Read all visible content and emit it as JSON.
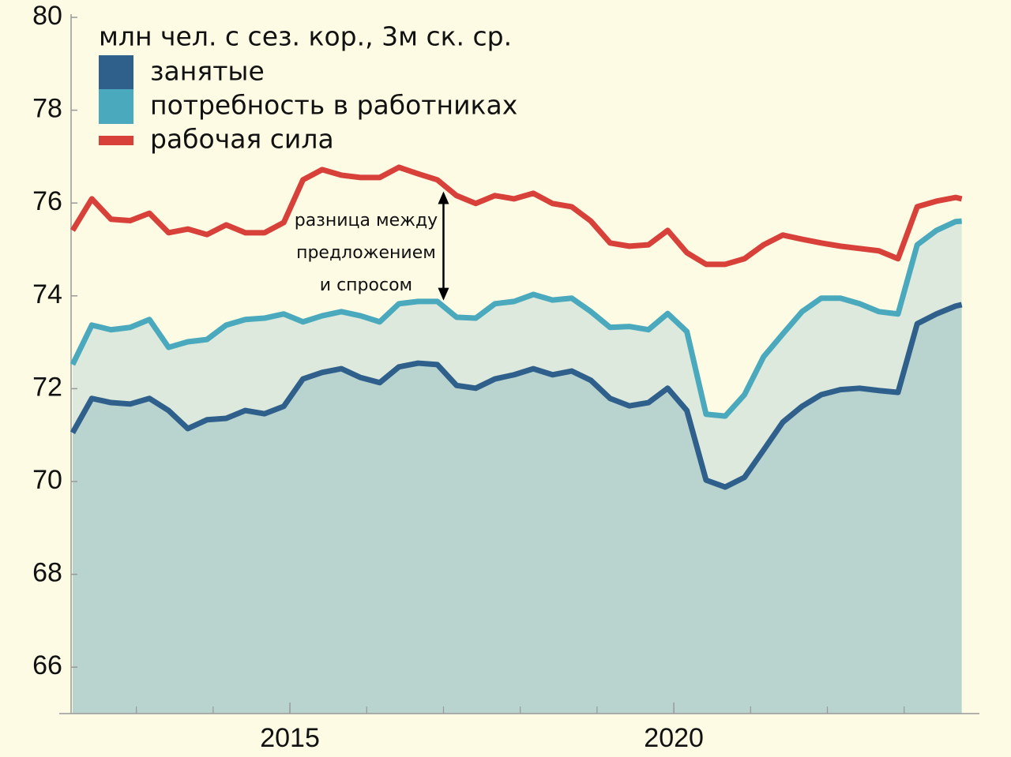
{
  "chart_data": {
    "type": "line",
    "legend_title": "млн чел. с сез. кор., 3м ск. ср.",
    "legend_position": "upper left",
    "x": [
      2012.17,
      2012.42,
      2012.67,
      2012.92,
      2013.17,
      2013.42,
      2013.67,
      2013.92,
      2014.17,
      2014.42,
      2014.67,
      2014.92,
      2015.17,
      2015.42,
      2015.67,
      2015.92,
      2016.17,
      2016.42,
      2016.67,
      2016.92,
      2017.17,
      2017.42,
      2017.67,
      2017.92,
      2018.17,
      2018.42,
      2018.67,
      2018.92,
      2019.17,
      2019.42,
      2019.67,
      2019.92,
      2020.17,
      2020.42,
      2020.67,
      2020.92,
      2021.17,
      2021.42,
      2021.67,
      2021.92,
      2022.17,
      2022.42,
      2022.67,
      2022.92,
      2023.17,
      2023.42,
      2023.67,
      2023.75
    ],
    "series": [
      {
        "name": "занятые",
        "color": "#2f5f8b",
        "fill": "#b9d3cf",
        "legend_marker": "square",
        "values": [
          71.05,
          71.79,
          71.7,
          71.67,
          71.79,
          71.53,
          71.14,
          71.33,
          71.36,
          71.53,
          71.46,
          71.62,
          72.21,
          72.35,
          72.43,
          72.24,
          72.13,
          72.47,
          72.55,
          72.52,
          72.07,
          72.01,
          72.21,
          72.3,
          72.43,
          72.3,
          72.38,
          72.18,
          71.79,
          71.63,
          71.7,
          72.01,
          71.53,
          70.03,
          69.88,
          70.09,
          70.68,
          71.28,
          71.62,
          71.87,
          71.98,
          72.01,
          71.96,
          71.92,
          73.4,
          73.61,
          73.78,
          73.81
        ]
      },
      {
        "name": "потребность в работниках",
        "color": "#4aa9bd",
        "fill": "#dce9dc",
        "legend_marker": "square",
        "values": [
          72.52,
          73.37,
          73.27,
          73.32,
          73.49,
          72.89,
          73.01,
          73.06,
          73.37,
          73.49,
          73.52,
          73.61,
          73.44,
          73.57,
          73.66,
          73.57,
          73.44,
          73.83,
          73.88,
          73.88,
          73.54,
          73.52,
          73.83,
          73.88,
          74.03,
          73.91,
          73.95,
          73.66,
          73.32,
          73.34,
          73.27,
          73.62,
          73.23,
          71.45,
          71.41,
          71.87,
          72.69,
          73.18,
          73.66,
          73.95,
          73.95,
          73.83,
          73.66,
          73.61,
          75.1,
          75.41,
          75.6,
          75.61
        ]
      },
      {
        "name": "рабочая сила",
        "color": "#d8403a",
        "legend_marker": "line",
        "values": [
          75.41,
          76.09,
          75.65,
          75.62,
          75.78,
          75.36,
          75.44,
          75.32,
          75.53,
          75.36,
          75.36,
          75.58,
          76.5,
          76.72,
          76.6,
          76.55,
          76.55,
          76.77,
          76.63,
          76.5,
          76.16,
          75.99,
          76.16,
          76.09,
          76.21,
          75.99,
          75.92,
          75.61,
          75.14,
          75.07,
          75.1,
          75.41,
          74.93,
          74.68,
          74.68,
          74.8,
          75.1,
          75.31,
          75.22,
          75.14,
          75.07,
          75.02,
          74.97,
          74.8,
          75.92,
          76.04,
          76.12,
          76.09
        ]
      }
    ],
    "annotation": {
      "lines": [
        "разница между",
        "предложением",
        "и спросом"
      ],
      "x": 2017,
      "from": 73.9,
      "to": 76.25
    },
    "xlim": [
      2012.15,
      2023.98
    ],
    "xticks": [
      2015,
      2020
    ],
    "xminorticks": [
      2013,
      2014,
      2016,
      2017,
      2018,
      2019,
      2021,
      2022,
      2023
    ],
    "ylim": [
      65,
      80
    ],
    "yticks": [
      66,
      68,
      70,
      72,
      74,
      76,
      78,
      80
    ],
    "background": "#fdfbe4"
  }
}
